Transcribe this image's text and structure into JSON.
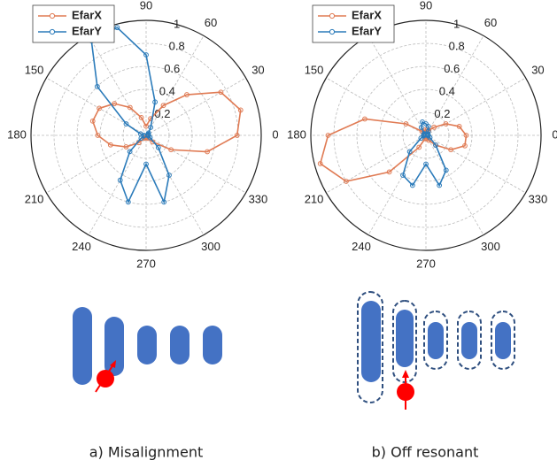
{
  "chart_data": [
    {
      "type": "polar",
      "caption": "a) Misalignment",
      "x": [
        0,
        15,
        30,
        45,
        60,
        75,
        90,
        105,
        120,
        135,
        150,
        165,
        180,
        195,
        210,
        225,
        240,
        255,
        270,
        285,
        300,
        315,
        330,
        345
      ],
      "xlim": [
        0,
        360
      ],
      "xticks": [
        0,
        30,
        60,
        90,
        120,
        150,
        180,
        210,
        240,
        270,
        300,
        330
      ],
      "ylim": [
        0,
        1
      ],
      "yticks": [
        0.2,
        0.4,
        0.6,
        0.8,
        1
      ],
      "grid": true,
      "legend": "upper left",
      "series": [
        {
          "name": "EfarX",
          "color": "#e07b54",
          "values": [
            0.79,
            0.85,
            0.75,
            0.5,
            0.3,
            0.15,
            0.08,
            0.16,
            0.28,
            0.39,
            0.47,
            0.48,
            0.42,
            0.32,
            0.2,
            0.09,
            0.03,
            0.02,
            0.02,
            0.02,
            0.03,
            0.08,
            0.25,
            0.55
          ]
        },
        {
          "name": "EfarY",
          "color": "#2b7bba",
          "values": [
            0.02,
            0.02,
            0.02,
            0.03,
            0.08,
            0.3,
            0.7,
            0.97,
            0.95,
            0.6,
            0.2,
            0.05,
            0.02,
            0.02,
            0.05,
            0.2,
            0.45,
            0.6,
            0.25,
            0.6,
            0.4,
            0.15,
            0.04,
            0.02
          ]
        }
      ]
    },
    {
      "type": "polar",
      "caption": "b) Off resonant",
      "x": [
        0,
        15,
        30,
        45,
        60,
        75,
        90,
        105,
        120,
        135,
        150,
        165,
        180,
        195,
        210,
        225,
        240,
        255,
        270,
        285,
        300,
        315,
        330,
        345
      ],
      "xlim": [
        0,
        360
      ],
      "xticks": [
        0,
        30,
        60,
        90,
        120,
        150,
        180,
        210,
        240,
        270,
        300,
        330
      ],
      "ylim": [
        0,
        1
      ],
      "yticks": [
        0.2,
        0.4,
        0.6,
        0.8,
        1
      ],
      "grid": true,
      "legend": "upper left",
      "series": [
        {
          "name": "EfarX",
          "color": "#e07b54",
          "values": [
            0.35,
            0.3,
            0.2,
            0.1,
            0.05,
            0.05,
            0.05,
            0.03,
            0.03,
            0.05,
            0.2,
            0.55,
            0.85,
            0.95,
            0.8,
            0.45,
            0.12,
            0.03,
            0.02,
            0.03,
            0.05,
            0.12,
            0.25,
            0.35
          ]
        },
        {
          "name": "EfarY",
          "color": "#2b7bba",
          "values": [
            0.02,
            0.02,
            0.02,
            0.02,
            0.04,
            0.08,
            0.1,
            0.12,
            0.08,
            0.02,
            0.02,
            0.02,
            0.02,
            0.02,
            0.05,
            0.2,
            0.4,
            0.45,
            0.25,
            0.45,
            0.35,
            0.12,
            0.04,
            0.02
          ]
        }
      ]
    }
  ]
}
